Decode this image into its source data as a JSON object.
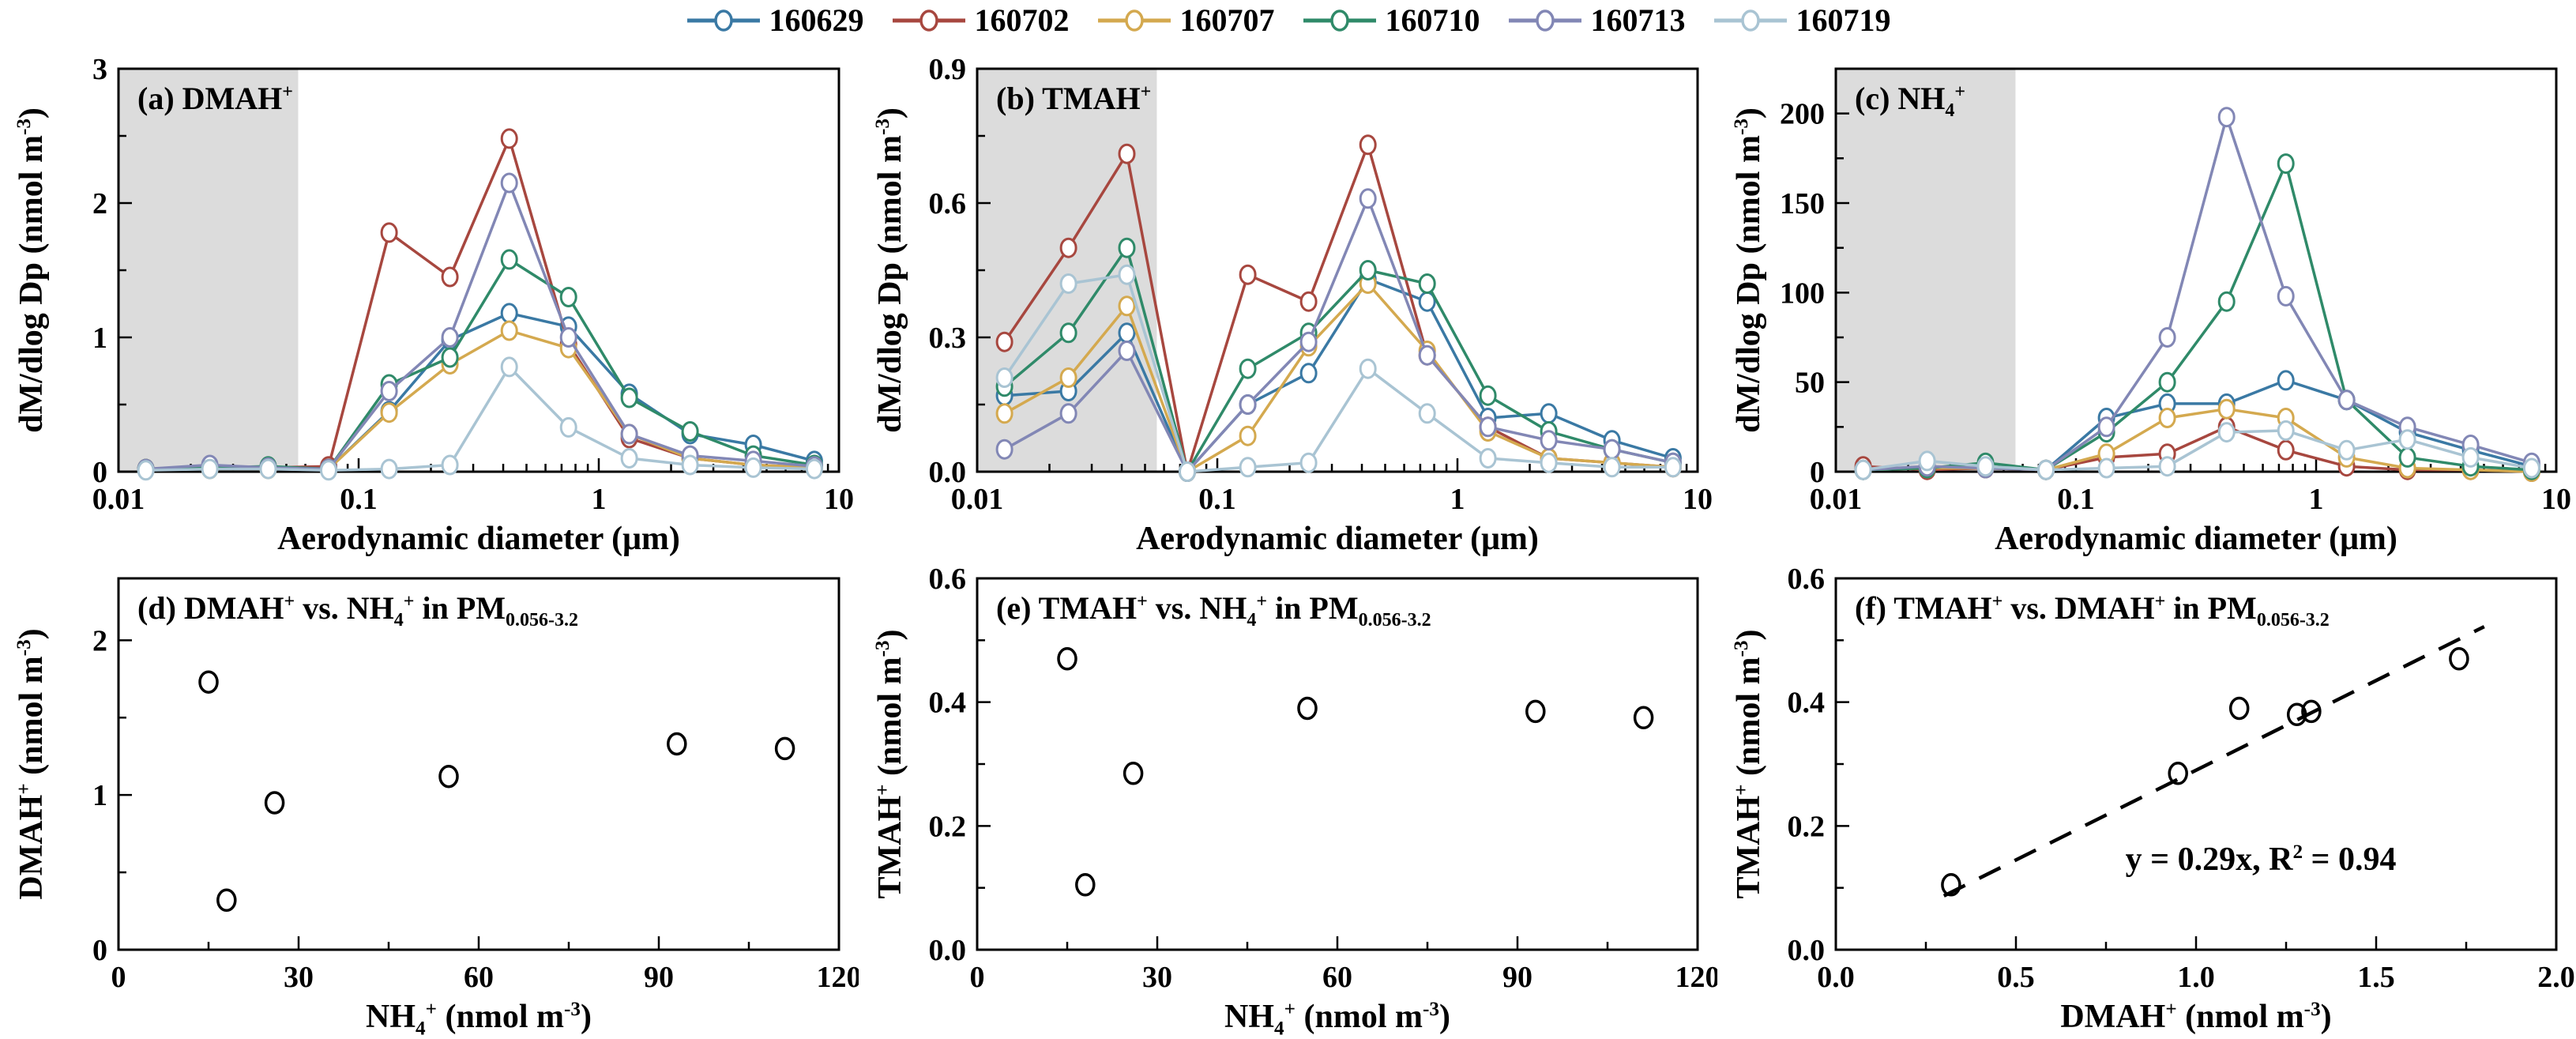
{
  "figure": {
    "background": "#ffffff",
    "frame_color": "#000000",
    "shaded_region_color": "#dcdcdc"
  },
  "legend": {
    "position": "top-center",
    "series": [
      {
        "name": "160629",
        "color": "#3A79A4"
      },
      {
        "name": "160702",
        "color": "#A7473F"
      },
      {
        "name": "160707",
        "color": "#D4A94F"
      },
      {
        "name": "160710",
        "color": "#2F8A69"
      },
      {
        "name": "160713",
        "color": "#8287B5"
      },
      {
        "name": "160719",
        "color": "#A9C4D3"
      }
    ]
  },
  "chart_data": [
    {
      "id": "a",
      "type": "line",
      "row": "top",
      "title": "(a) DMAH^+^",
      "xlabel": "Aerodynamic diameter (μm)",
      "ylabel": "dM/dlog Dp (nmol m^-3^)",
      "xscale": "log",
      "xlim": [
        0.01,
        10
      ],
      "ylim": [
        0,
        3
      ],
      "xticks": [
        {
          "v": 0.01,
          "label": "0.01"
        },
        {
          "v": 0.1,
          "label": "0.1"
        },
        {
          "v": 1,
          "label": "1"
        },
        {
          "v": 10,
          "label": "10"
        }
      ],
      "yticks": [
        {
          "v": 0,
          "label": "0"
        },
        {
          "v": 1,
          "label": "1"
        },
        {
          "v": 2,
          "label": "2"
        },
        {
          "v": 3,
          "label": "3"
        }
      ],
      "gray_band": [
        0.01,
        0.056
      ],
      "x": [
        0.013,
        0.024,
        0.042,
        0.075,
        0.134,
        0.24,
        0.424,
        0.748,
        1.34,
        2.4,
        4.4,
        7.9
      ],
      "series": [
        {
          "name": "160629",
          "values": [
            0.02,
            0.03,
            0.03,
            0.02,
            0.45,
            0.98,
            1.18,
            1.08,
            0.58,
            0.28,
            0.2,
            0.08
          ]
        },
        {
          "name": "160702",
          "values": [
            0.02,
            0.03,
            0.03,
            0.04,
            1.78,
            1.45,
            2.48,
            0.95,
            0.25,
            0.1,
            0.05,
            0.03
          ]
        },
        {
          "name": "160707",
          "values": [
            0.02,
            0.02,
            0.02,
            0.02,
            0.44,
            0.8,
            1.05,
            0.92,
            0.28,
            0.1,
            0.05,
            0.03
          ]
        },
        {
          "name": "160710",
          "values": [
            0.02,
            0.03,
            0.04,
            0.02,
            0.65,
            0.85,
            1.58,
            1.3,
            0.55,
            0.3,
            0.12,
            0.05
          ]
        },
        {
          "name": "160713",
          "values": [
            0.02,
            0.05,
            0.03,
            0.02,
            0.6,
            1.0,
            2.15,
            1.0,
            0.28,
            0.12,
            0.08,
            0.04
          ]
        },
        {
          "name": "160719",
          "values": [
            0.01,
            0.02,
            0.02,
            0.01,
            0.02,
            0.05,
            0.78,
            0.33,
            0.1,
            0.05,
            0.03,
            0.02
          ]
        }
      ]
    },
    {
      "id": "b",
      "type": "line",
      "row": "top",
      "title": "(b) TMAH^+^",
      "xlabel": "Aerodynamic diameter (μm)",
      "ylabel": "dM/dlog Dp (nmol m^-3^)",
      "xscale": "log",
      "xlim": [
        0.01,
        10
      ],
      "ylim": [
        0,
        0.9
      ],
      "xticks": [
        {
          "v": 0.01,
          "label": "0.01"
        },
        {
          "v": 0.1,
          "label": "0.1"
        },
        {
          "v": 1,
          "label": "1"
        },
        {
          "v": 10,
          "label": "10"
        }
      ],
      "yticks": [
        {
          "v": 0,
          "label": "0.0"
        },
        {
          "v": 0.3,
          "label": "0.3"
        },
        {
          "v": 0.6,
          "label": "0.6"
        },
        {
          "v": 0.9,
          "label": "0.9"
        }
      ],
      "gray_band": [
        0.01,
        0.056
      ],
      "x": [
        0.013,
        0.024,
        0.042,
        0.075,
        0.134,
        0.24,
        0.424,
        0.748,
        1.34,
        2.4,
        4.4,
        7.9
      ],
      "series": [
        {
          "name": "160629",
          "values": [
            0.17,
            0.18,
            0.31,
            0.0,
            0.15,
            0.22,
            0.43,
            0.38,
            0.12,
            0.13,
            0.07,
            0.03
          ]
        },
        {
          "name": "160702",
          "values": [
            0.29,
            0.5,
            0.71,
            0.0,
            0.44,
            0.38,
            0.73,
            0.26,
            0.1,
            0.03,
            0.02,
            0.01
          ]
        },
        {
          "name": "160707",
          "values": [
            0.13,
            0.21,
            0.37,
            0.0,
            0.08,
            0.28,
            0.42,
            0.27,
            0.09,
            0.03,
            0.02,
            0.01
          ]
        },
        {
          "name": "160710",
          "values": [
            0.19,
            0.31,
            0.5,
            0.0,
            0.23,
            0.31,
            0.45,
            0.42,
            0.17,
            0.09,
            0.05,
            0.02
          ]
        },
        {
          "name": "160713",
          "values": [
            0.05,
            0.13,
            0.27,
            0.0,
            0.15,
            0.29,
            0.61,
            0.26,
            0.1,
            0.07,
            0.05,
            0.02
          ]
        },
        {
          "name": "160719",
          "values": [
            0.21,
            0.42,
            0.44,
            0.0,
            0.01,
            0.02,
            0.23,
            0.13,
            0.03,
            0.02,
            0.01,
            0.01
          ]
        }
      ]
    },
    {
      "id": "c",
      "type": "line",
      "row": "top",
      "title": "(c) NH_4_^+^",
      "xlabel": "Aerodynamic diameter (μm)",
      "ylabel": "dM/dlog Dp (nmol m^-3^)",
      "xscale": "log",
      "xlim": [
        0.01,
        10
      ],
      "ylim": [
        0,
        225
      ],
      "xticks": [
        {
          "v": 0.01,
          "label": "0.01"
        },
        {
          "v": 0.1,
          "label": "0.1"
        },
        {
          "v": 1,
          "label": "1"
        },
        {
          "v": 10,
          "label": "10"
        }
      ],
      "yticks": [
        {
          "v": 0,
          "label": "0"
        },
        {
          "v": 50,
          "label": "50"
        },
        {
          "v": 100,
          "label": "100"
        },
        {
          "v": 150,
          "label": "150"
        },
        {
          "v": 200,
          "label": "200"
        }
      ],
      "gray_band": [
        0.01,
        0.056
      ],
      "x": [
        0.013,
        0.024,
        0.042,
        0.075,
        0.134,
        0.24,
        0.424,
        0.748,
        1.34,
        2.4,
        4.4,
        7.9
      ],
      "series": [
        {
          "name": "160629",
          "values": [
            1,
            2,
            2,
            1,
            30,
            38,
            38,
            51,
            40,
            22,
            12,
            3
          ]
        },
        {
          "name": "160702",
          "values": [
            3,
            1,
            2,
            1,
            8,
            10,
            25,
            12,
            3,
            1,
            1,
            0
          ]
        },
        {
          "name": "160707",
          "values": [
            1,
            2,
            2,
            1,
            10,
            30,
            35,
            30,
            8,
            2,
            1,
            0
          ]
        },
        {
          "name": "160710",
          "values": [
            1,
            2,
            5,
            1,
            22,
            50,
            95,
            172,
            40,
            8,
            3,
            1
          ]
        },
        {
          "name": "160713",
          "values": [
            1,
            3,
            2,
            1,
            25,
            75,
            198,
            98,
            40,
            25,
            15,
            5
          ]
        },
        {
          "name": "160719",
          "values": [
            1,
            6,
            3,
            1,
            2,
            3,
            22,
            23,
            12,
            18,
            8,
            2
          ]
        }
      ]
    },
    {
      "id": "d",
      "type": "scatter",
      "row": "bottom",
      "title": "(d) DMAH^+^ vs. NH_4_^+^ in PM_0.056-3.2_",
      "xlabel": "NH_4_^+^ (nmol m^-3^)",
      "ylabel": "DMAH^+^ (nmol m^-3^)",
      "xscale": "linear",
      "xlim": [
        0,
        120
      ],
      "ylim": [
        0,
        2.4
      ],
      "xticks": [
        {
          "v": 0,
          "label": "0"
        },
        {
          "v": 30,
          "label": "30"
        },
        {
          "v": 60,
          "label": "60"
        },
        {
          "v": 90,
          "label": "90"
        },
        {
          "v": 120,
          "label": "120"
        }
      ],
      "yticks": [
        {
          "v": 0,
          "label": "0"
        },
        {
          "v": 1,
          "label": "1"
        },
        {
          "v": 2,
          "label": "2"
        }
      ],
      "gray_band": null,
      "points": [
        [
          15,
          1.73
        ],
        [
          18,
          0.32
        ],
        [
          26,
          0.95
        ],
        [
          55,
          1.12
        ],
        [
          93,
          1.33
        ],
        [
          111,
          1.3
        ]
      ]
    },
    {
      "id": "e",
      "type": "scatter",
      "row": "bottom",
      "title": "(e) TMAH^+^ vs. NH_4_^+^ in PM_0.056-3.2_",
      "xlabel": "NH_4_^+^ (nmol m^-3^)",
      "ylabel": "TMAH^+^ (nmol m^-3^)",
      "xscale": "linear",
      "xlim": [
        0,
        120
      ],
      "ylim": [
        0,
        0.6
      ],
      "xticks": [
        {
          "v": 0,
          "label": "0"
        },
        {
          "v": 30,
          "label": "30"
        },
        {
          "v": 60,
          "label": "60"
        },
        {
          "v": 90,
          "label": "90"
        },
        {
          "v": 120,
          "label": "120"
        }
      ],
      "yticks": [
        {
          "v": 0,
          "label": "0.0"
        },
        {
          "v": 0.2,
          "label": "0.2"
        },
        {
          "v": 0.4,
          "label": "0.4"
        },
        {
          "v": 0.6,
          "label": "0.6"
        }
      ],
      "gray_band": null,
      "points": [
        [
          15,
          0.47
        ],
        [
          18,
          0.105
        ],
        [
          26,
          0.285
        ],
        [
          55,
          0.39
        ],
        [
          93,
          0.385
        ],
        [
          111,
          0.375
        ]
      ]
    },
    {
      "id": "f",
      "type": "scatter",
      "row": "bottom",
      "title": "(f) TMAH^+^ vs. DMAH^+^ in PM_0.056-3.2_",
      "xlabel": "DMAH^+^ (nmol m^-3^)",
      "ylabel": "TMAH^+^ (nmol m^-3^)",
      "xscale": "linear",
      "xlim": [
        0,
        2.0
      ],
      "ylim": [
        0,
        0.6
      ],
      "xticks": [
        {
          "v": 0,
          "label": "0.0"
        },
        {
          "v": 0.5,
          "label": "0.5"
        },
        {
          "v": 1.0,
          "label": "1.0"
        },
        {
          "v": 1.5,
          "label": "1.5"
        },
        {
          "v": 2.0,
          "label": "2.0"
        }
      ],
      "yticks": [
        {
          "v": 0,
          "label": "0.0"
        },
        {
          "v": 0.2,
          "label": "0.2"
        },
        {
          "v": 0.4,
          "label": "0.4"
        },
        {
          "v": 0.6,
          "label": "0.6"
        }
      ],
      "gray_band": null,
      "points": [
        [
          0.32,
          0.105
        ],
        [
          0.95,
          0.285
        ],
        [
          1.12,
          0.39
        ],
        [
          1.28,
          0.38
        ],
        [
          1.32,
          0.385
        ],
        [
          1.73,
          0.47
        ]
      ],
      "fit": {
        "slope": 0.29,
        "x_range": [
          0.3,
          1.8
        ],
        "style": "dashed",
        "label": "y = 0.29x, R^2^ = 0.94",
        "label_pos": [
          1.18,
          0.145
        ]
      }
    }
  ]
}
